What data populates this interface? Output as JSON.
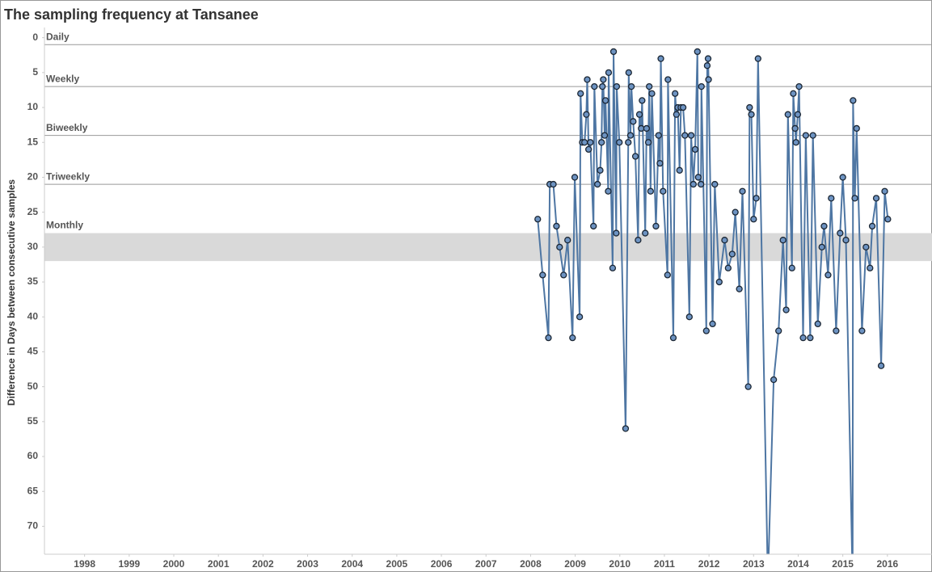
{
  "chart_data": {
    "type": "line",
    "title": "The sampling frequency at Tansanee",
    "y_label": "Difference in Days between consecutive samples",
    "color": "#4e76a3",
    "marker_color": "#6d93c2",
    "y_reversed": true,
    "xlim": [
      1997.1,
      2017.0
    ],
    "xticks": [
      1998,
      1999,
      2000,
      2001,
      2002,
      2003,
      2004,
      2005,
      2006,
      2007,
      2008,
      2009,
      2010,
      2011,
      2012,
      2013,
      2014,
      2015,
      2016
    ],
    "ylim": [
      -1,
      74
    ],
    "yticks": [
      0,
      5,
      10,
      15,
      20,
      25,
      30,
      35,
      40,
      45,
      50,
      55,
      60,
      65,
      70
    ],
    "reference_lines": [
      {
        "label": "Daily",
        "value": 1
      },
      {
        "label": "Weekly",
        "value": 7
      },
      {
        "label": "Biweekly",
        "value": 14
      },
      {
        "label": "Triweekly",
        "value": 21
      }
    ],
    "reference_band": {
      "label": "Monthly",
      "from": 28,
      "to": 32,
      "color": "#d9d9d9"
    },
    "x": [
      2008.16,
      2008.27,
      2008.4,
      2008.43,
      2008.51,
      2008.58,
      2008.65,
      2008.74,
      2008.83,
      2008.94,
      2008.99,
      2009.1,
      2009.12,
      2009.16,
      2009.21,
      2009.25,
      2009.27,
      2009.3,
      2009.34,
      2009.41,
      2009.43,
      2009.5,
      2009.56,
      2009.59,
      2009.61,
      2009.63,
      2009.66,
      2009.68,
      2009.74,
      2009.75,
      2009.84,
      2009.86,
      2009.92,
      2009.93,
      2009.99,
      2010.13,
      2010.19,
      2010.2,
      2010.24,
      2010.26,
      2010.3,
      2010.35,
      2010.41,
      2010.44,
      2010.48,
      2010.5,
      2010.57,
      2010.6,
      2010.64,
      2010.66,
      2010.69,
      2010.72,
      2010.81,
      2010.87,
      2010.9,
      2010.92,
      2010.97,
      2011.07,
      2011.08,
      2011.2,
      2011.24,
      2011.27,
      2011.3,
      2011.34,
      2011.37,
      2011.42,
      2011.46,
      2011.56,
      2011.6,
      2011.65,
      2011.69,
      2011.74,
      2011.76,
      2011.82,
      2011.83,
      2011.94,
      2011.96,
      2011.98,
      2011.99,
      2012.08,
      2012.13,
      2012.23,
      2012.35,
      2012.43,
      2012.52,
      2012.59,
      2012.68,
      2012.75,
      2012.88,
      2012.91,
      2012.95,
      2013.0,
      2013.06,
      2013.1,
      2013.32,
      2013.45,
      2013.56,
      2013.66,
      2013.73,
      2013.77,
      2013.86,
      2013.89,
      2013.93,
      2013.95,
      2013.99,
      2014.02,
      2014.11,
      2014.17,
      2014.27,
      2014.33,
      2014.44,
      2014.53,
      2014.58,
      2014.67,
      2014.74,
      2014.85,
      2014.94,
      2015.0,
      2015.07,
      2015.22,
      2015.23,
      2015.27,
      2015.31,
      2015.43,
      2015.52,
      2015.61,
      2015.66,
      2015.75,
      2015.86,
      2015.94,
      2016.01
    ],
    "values": [
      26,
      34,
      43,
      21,
      21,
      27,
      30,
      34,
      29,
      43,
      20,
      40,
      8,
      15,
      15,
      11,
      6,
      16,
      15,
      27,
      7,
      21,
      19,
      15,
      7,
      6,
      14,
      9,
      22,
      5,
      33,
      2,
      28,
      7,
      15,
      56,
      15,
      5,
      14,
      7,
      12,
      17,
      29,
      11,
      13,
      9,
      28,
      13,
      15,
      7,
      22,
      8,
      27,
      14,
      18,
      3,
      22,
      34,
      6,
      43,
      8,
      11,
      10,
      19,
      10,
      10,
      14,
      40,
      14,
      21,
      16,
      2,
      20,
      21,
      7,
      42,
      4,
      3,
      6,
      41,
      21,
      35,
      29,
      33,
      31,
      25,
      36,
      22,
      50,
      10,
      11,
      26,
      23,
      3,
      78,
      49,
      42,
      29,
      39,
      11,
      33,
      8,
      13,
      15,
      11,
      7,
      43,
      14,
      43,
      14,
      41,
      30,
      27,
      34,
      23,
      42,
      28,
      20,
      29,
      78,
      9,
      23,
      13,
      42,
      30,
      33,
      27,
      23,
      47,
      22,
      26
    ]
  }
}
